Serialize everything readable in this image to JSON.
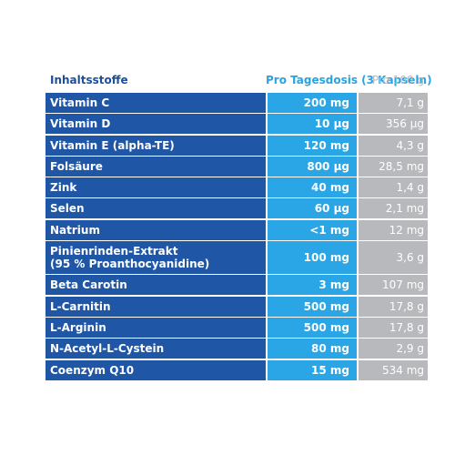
{
  "table": {
    "headers": {
      "name": "Inhaltsstoffe",
      "dose": "Pro Tagesdosis (3 Kapseln)",
      "per100": "Pro 100 g"
    },
    "rows": [
      {
        "name": [
          "Vitamin C"
        ],
        "dose": "200 mg",
        "per100": "7,1 g"
      },
      {
        "name": [
          "Vitamin D"
        ],
        "dose": "10 µg",
        "per100": "356 µg"
      },
      {
        "name": [
          "Vitamin E (alpha-TE)"
        ],
        "dose": "120 mg",
        "per100": "4,3 g"
      },
      {
        "name": [
          "Folsäure"
        ],
        "dose": "800 µg",
        "per100": "28,5 mg"
      },
      {
        "name": [
          "Zink"
        ],
        "dose": "40 mg",
        "per100": "1,4 g"
      },
      {
        "name": [
          "Selen"
        ],
        "dose": "60 µg",
        "per100": "2,1 mg"
      },
      {
        "name": [
          "Natrium"
        ],
        "dose": "<1 mg",
        "per100": "12 mg"
      },
      {
        "name": [
          "Pinienrinden-Extrakt",
          "(95 % Proanthocyanidine)"
        ],
        "dose": "100 mg",
        "per100": "3,6 g"
      },
      {
        "name": [
          "Beta Carotin"
        ],
        "dose": "3 mg",
        "per100": "107 mg"
      },
      {
        "name": [
          "L-Carnitin"
        ],
        "dose": "500 mg",
        "per100": "17,8 g"
      },
      {
        "name": [
          "L-Arginin"
        ],
        "dose": "500 mg",
        "per100": "17,8 g"
      },
      {
        "name": [
          "N-Acetyl-L-Cystein"
        ],
        "dose": "80 mg",
        "per100": "2,9 g"
      },
      {
        "name": [
          "Coenzym Q10"
        ],
        "dose": "15 mg",
        "per100": "534 mg"
      }
    ]
  }
}
